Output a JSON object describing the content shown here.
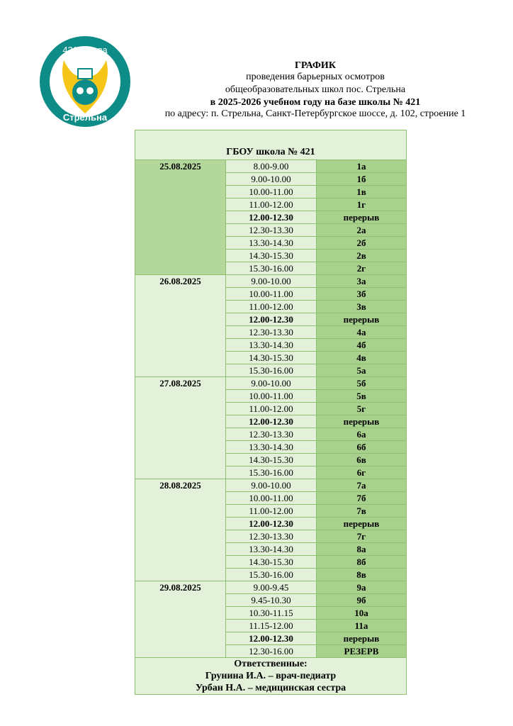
{
  "logo": {
    "top_text": "421 школа",
    "bottom_text": "Стрельна"
  },
  "header": {
    "title": "ГРАФИК",
    "line1": "проведения барьерных осмотров",
    "line2": "общеобразовательных школ пос. Стрельна",
    "line3": "в 2025-2026 учебном году на базе школы № 421",
    "line4": "по адресу: п. Стрельна, Санкт-Петербургское шоссе, д. 102, строение 1"
  },
  "table": {
    "title": "ГБОУ школа № 421",
    "days": [
      {
        "date": "25.08.2025",
        "color": "#b4d79c",
        "slots": [
          {
            "time": "8.00-9.00",
            "class": "1а"
          },
          {
            "time": "9.00-10.00",
            "class": "1б"
          },
          {
            "time": "10.00-11.00",
            "class": "1в"
          },
          {
            "time": "11.00-12.00",
            "class": "1г"
          },
          {
            "time": "12.00-12.30",
            "class": "перерыв",
            "bold": true
          },
          {
            "time": "12.30-13.30",
            "class": "2а"
          },
          {
            "time": "13.30-14.30",
            "class": "2б"
          },
          {
            "time": "14.30-15.30",
            "class": "2в"
          },
          {
            "time": "15.30-16.00",
            "class": "2г"
          }
        ]
      },
      {
        "date": "26.08.2025",
        "color": "#e3f0da",
        "slots": [
          {
            "time": "9.00-10.00",
            "class": "3а"
          },
          {
            "time": "10.00-11.00",
            "class": "3б"
          },
          {
            "time": "11.00-12.00",
            "class": "3в"
          },
          {
            "time": "12.00-12.30",
            "class": "перерыв",
            "bold": true
          },
          {
            "time": "12.30-13.30",
            "class": "4а"
          },
          {
            "time": "13.30-14.30",
            "class": "4б"
          },
          {
            "time": "14.30-15.30",
            "class": "4в"
          },
          {
            "time": "15.30-16.00",
            "class": "5а"
          }
        ]
      },
      {
        "date": "27.08.2025",
        "color": "#e3f0da",
        "slots": [
          {
            "time": "9.00-10.00",
            "class": "5б"
          },
          {
            "time": "10.00-11.00",
            "class": "5в"
          },
          {
            "time": "11.00-12.00",
            "class": "5г"
          },
          {
            "time": "12.00-12.30",
            "class": "перерыв",
            "bold": true
          },
          {
            "time": "12.30-13.30",
            "class": "6а"
          },
          {
            "time": "13.30-14.30",
            "class": "6б"
          },
          {
            "time": "14.30-15.30",
            "class": "6в"
          },
          {
            "time": "15.30-16.00",
            "class": "6г"
          }
        ]
      },
      {
        "date": "28.08.2025",
        "color": "#e3f0da",
        "slots": [
          {
            "time": "9.00-10.00",
            "class": "7а"
          },
          {
            "time": "10.00-11.00",
            "class": "7б"
          },
          {
            "time": "11.00-12.00",
            "class": "7в"
          },
          {
            "time": "12.00-12.30",
            "class": "перерыв",
            "bold": true
          },
          {
            "time": "12.30-13.30",
            "class": "7г"
          },
          {
            "time": "13.30-14.30",
            "class": "8а"
          },
          {
            "time": "14.30-15.30",
            "class": "8б"
          },
          {
            "time": "15.30-16.00",
            "class": "8в"
          }
        ]
      },
      {
        "date": "29.08.2025",
        "color": "#e3f0da",
        "slots": [
          {
            "time": "9.00-9.45",
            "class": "9а"
          },
          {
            "time": "9.45-10.30",
            "class": "9б"
          },
          {
            "time": "10.30-11.15",
            "class": "10а"
          },
          {
            "time": "11.15-12.00",
            "class": "11а"
          },
          {
            "time": "12.00-12.30",
            "class": "перерыв",
            "bold": true
          },
          {
            "time": "12.30-16.00",
            "class": "РЕЗЕРВ"
          }
        ]
      }
    ],
    "footer": {
      "label": "Ответственные:",
      "line1": "Грунина И.А. – врач-педиатр",
      "line2": "Урбан Н.А. – медицинская сестра"
    }
  }
}
